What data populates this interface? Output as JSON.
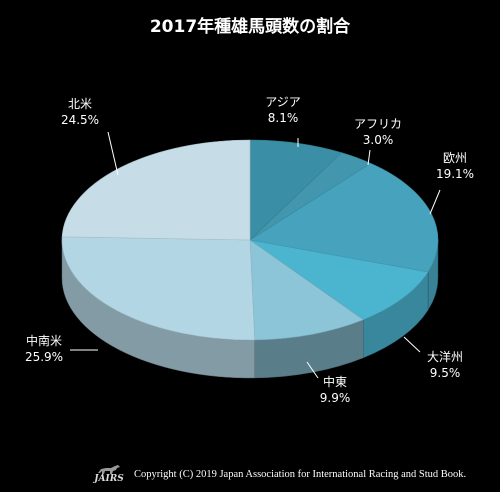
{
  "chart_data": {
    "type": "pie",
    "title": "2017年種雄馬頭数の割合",
    "slices": [
      {
        "label": "アジア",
        "value": 8.1,
        "value_label": "8.1%",
        "color": "#3a8ea6"
      },
      {
        "label": "アフリカ",
        "value": 3.0,
        "value_label": "3.0%",
        "color": "#4296ad"
      },
      {
        "label": "欧州",
        "value": 19.1,
        "value_label": "19.1%",
        "color": "#46a2bd"
      },
      {
        "label": "大洋州",
        "value": 9.5,
        "value_label": "9.5%",
        "color": "#4bb4cf"
      },
      {
        "label": "中東",
        "value": 9.9,
        "value_label": "9.9%",
        "color": "#8cc5d8"
      },
      {
        "label": "中南米",
        "value": 25.9,
        "value_label": "25.9%",
        "color": "#b3d6e4"
      },
      {
        "label": "北米",
        "value": 24.5,
        "value_label": "24.5%",
        "color": "#c6dde8"
      }
    ]
  },
  "footer": {
    "logo_text": "JAIRS",
    "copyright": "Copyright (C) 2019 Japan Association for International Racing and Stud Book."
  }
}
